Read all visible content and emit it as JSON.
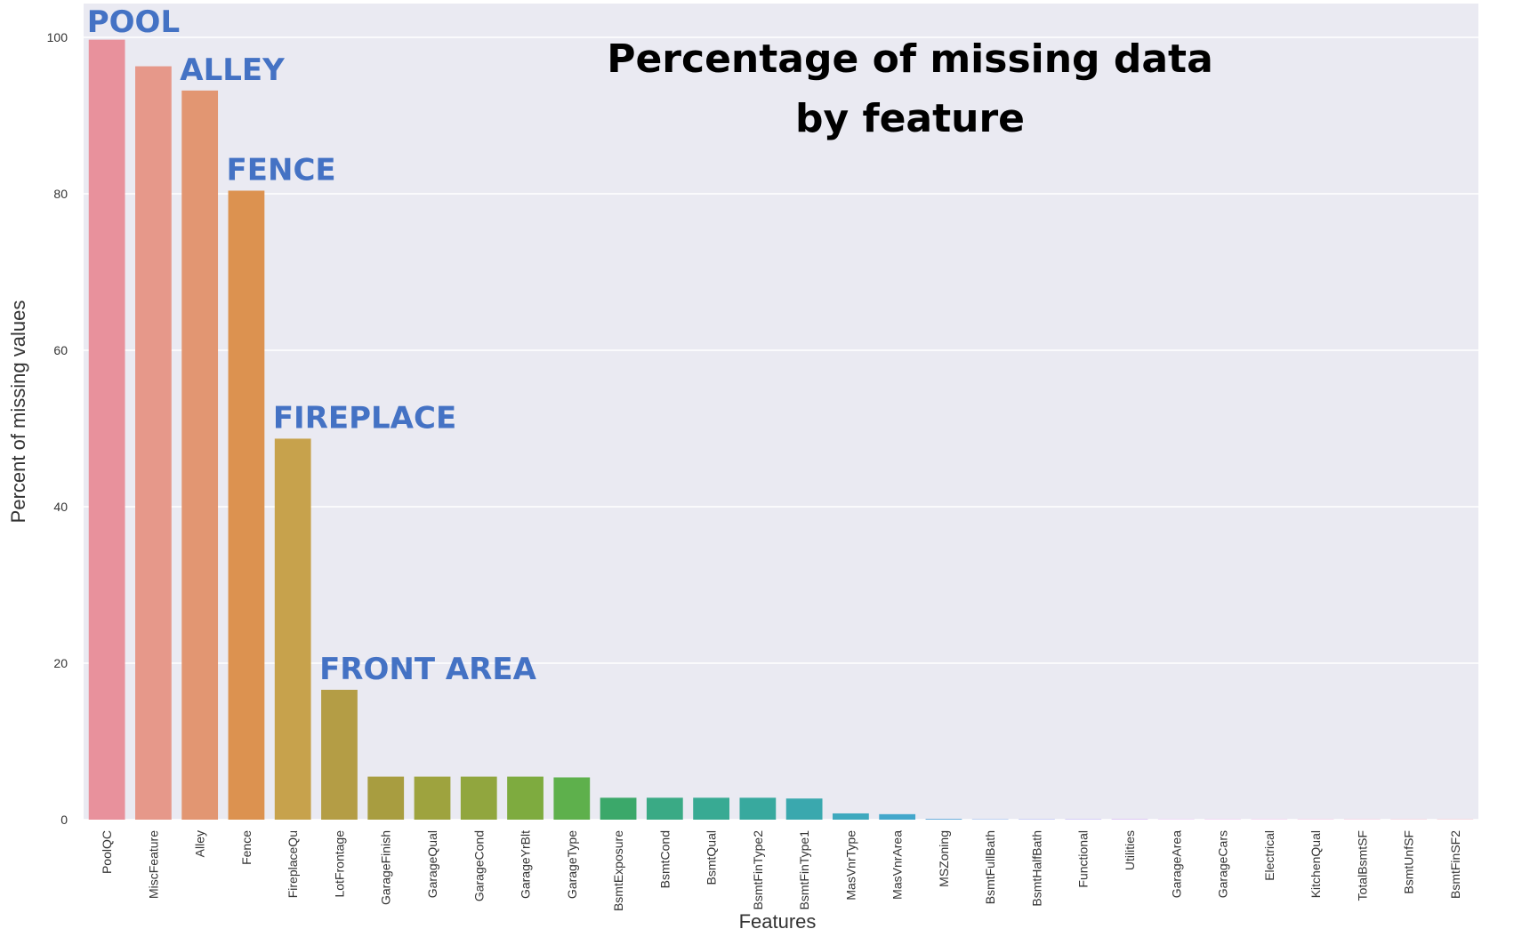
{
  "chart_data": {
    "type": "bar",
    "title_lines": [
      "Percentage of missing data",
      "by feature"
    ],
    "xlabel": "Features",
    "ylabel": "Percent of missing values",
    "ylim": [
      0,
      104
    ],
    "yticks": [
      0,
      20,
      40,
      60,
      80,
      100
    ],
    "grid": true,
    "categories": [
      "PoolQC",
      "MiscFeature",
      "Alley",
      "Fence",
      "FireplaceQu",
      "LotFrontage",
      "GarageFinish",
      "GarageQual",
      "GarageCond",
      "GarageYrBlt",
      "GarageType",
      "BsmtExposure",
      "BsmtCond",
      "BsmtQual",
      "BsmtFinType2",
      "BsmtFinType1",
      "MasVnrType",
      "MasVnrArea",
      "MSZoning",
      "BsmtFullBath",
      "BsmtHalfBath",
      "Functional",
      "Utilities",
      "GarageArea",
      "GarageCars",
      "Electrical",
      "KitchenQual",
      "TotalBsmtSF",
      "BsmtUnfSF",
      "BsmtFinSF2"
    ],
    "values": [
      99.7,
      96.3,
      93.2,
      80.4,
      48.7,
      16.6,
      5.5,
      5.5,
      5.5,
      5.5,
      5.4,
      2.8,
      2.8,
      2.8,
      2.8,
      2.7,
      0.8,
      0.7,
      0.1,
      0.05,
      0.05,
      0.05,
      0.05,
      0.03,
      0.03,
      0.03,
      0.03,
      0.03,
      0.03,
      0.03
    ],
    "colors": [
      "#E8919C",
      "#E6988A",
      "#E29672",
      "#DC9250",
      "#C7A24C",
      "#B49D45",
      "#A89D40",
      "#9EA33E",
      "#91A63E",
      "#7EAB3F",
      "#5EB04C",
      "#3BA86A",
      "#3AAA85",
      "#38AA93",
      "#38A99E",
      "#3AA8AE",
      "#3EA9BE",
      "#43A7CB",
      "#5BA5D8",
      "#7BA3E6",
      "#96A1EE",
      "#AE9CF1",
      "#C091EE",
      "#D08AE8",
      "#DD86E0",
      "#E586D5",
      "#E987C7",
      "#EB89B8",
      "#EC8DAB",
      "#EC90A1"
    ],
    "callouts": [
      {
        "text": "POOL",
        "category": "PoolQC"
      },
      {
        "text": "ALLEY",
        "category": "Alley"
      },
      {
        "text": "FENCE",
        "category": "Fence"
      },
      {
        "text": "FIREPLACE",
        "category": "FireplaceQu"
      },
      {
        "text": "FRONT AREA",
        "category": "LotFrontage"
      }
    ]
  }
}
